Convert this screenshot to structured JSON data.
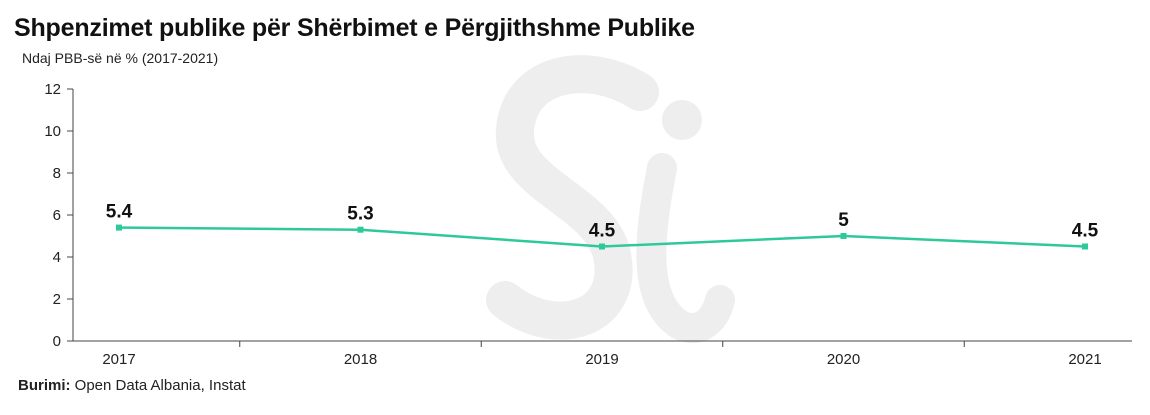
{
  "header": {
    "title": "Shpenzimet publike për Shërbimet e Përgjithshme Publike",
    "subtitle": "Ndaj PBB-së në % (2017-2021)"
  },
  "footer": {
    "source_label": "Burimi:",
    "source_text": " Open Data Albania, Instat"
  },
  "colors": {
    "line": "#2ec99a",
    "axis": "#444444",
    "watermark": "#eeeeee"
  },
  "watermark_icon": "si-logo-watermark",
  "chart_data": {
    "type": "line",
    "title": "Shpenzimet publike për Shërbimet e Përgjithshme Publike",
    "subtitle": "Ndaj PBB-së në % (2017-2021)",
    "categories": [
      "2017",
      "2018",
      "2019",
      "2020",
      "2021"
    ],
    "values": [
      5.4,
      5.3,
      4.5,
      5,
      4.5
    ],
    "data_labels": [
      "5.4",
      "5.3",
      "4.5",
      "5",
      "4.5"
    ],
    "yticks": [
      "0",
      "2",
      "4",
      "6",
      "8",
      "10",
      "12"
    ],
    "ylim": [
      0,
      12
    ],
    "grid": false,
    "legend": false
  }
}
